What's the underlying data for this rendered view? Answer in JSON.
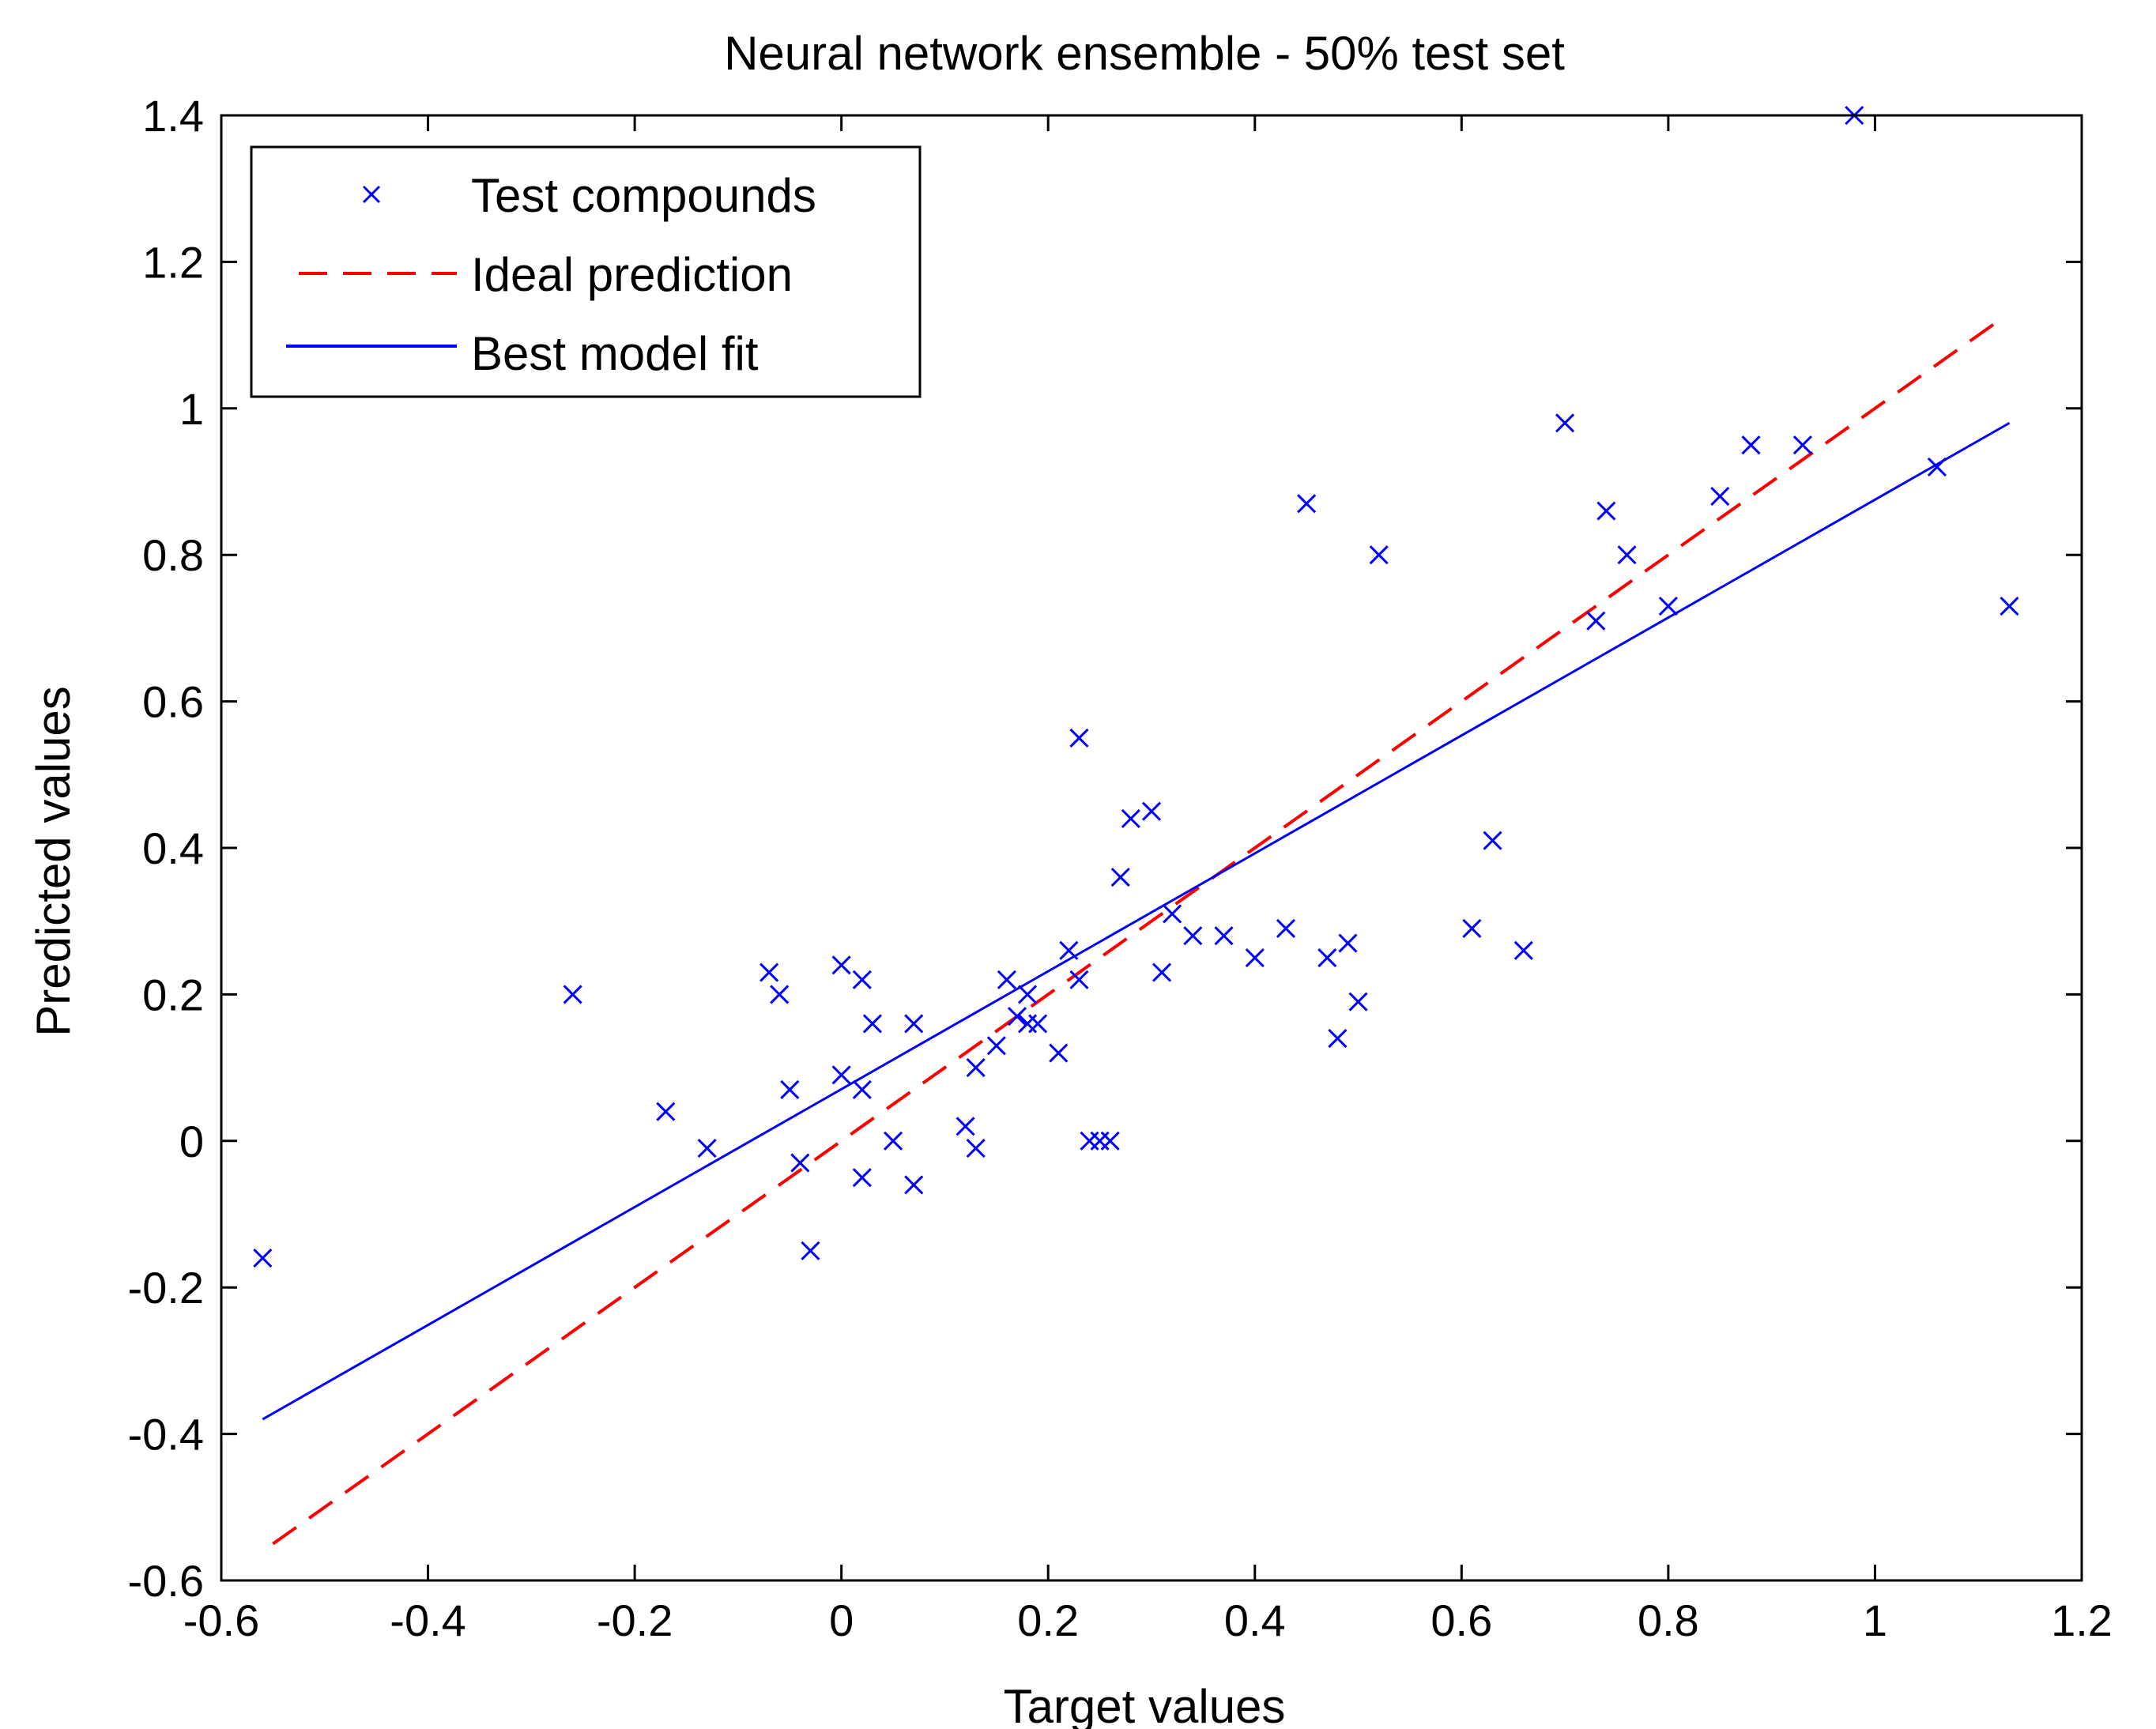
{
  "chart_data": {
    "type": "scatter",
    "title": "Neural network ensemble - 50% test set",
    "xlabel": "Target values",
    "ylabel": "Predicted values",
    "xlim": [
      -0.6,
      1.2
    ],
    "ylim": [
      -0.6,
      1.4
    ],
    "xticks": [
      -0.6,
      -0.4,
      -0.2,
      0,
      0.2,
      0.4,
      0.6,
      0.8,
      1,
      1.2
    ],
    "xtick_labels": [
      "-0.6",
      "-0.4",
      "-0.2",
      "0",
      "0.2",
      "0.4",
      "0.6",
      "0.8",
      "1",
      "1.2"
    ],
    "yticks": [
      -0.6,
      -0.4,
      -0.2,
      0,
      0.2,
      0.4,
      0.6,
      0.8,
      1,
      1.2,
      1.4
    ],
    "ytick_labels": [
      "-0.6",
      "-0.4",
      "-0.2",
      "0",
      "0.2",
      "0.4",
      "0.6",
      "0.8",
      "1",
      "1.2",
      "1.4"
    ],
    "grid": false,
    "legend_position": "top-left",
    "legend": [
      "Test compounds",
      "Ideal prediction",
      "Best model fit"
    ],
    "colors": {
      "points": "#0000ff",
      "ideal": "#ff0000",
      "fit": "#0000ff",
      "axes": "#000000"
    },
    "series": [
      {
        "name": "Test compounds",
        "marker": "x",
        "points": [
          [
            -0.56,
            -0.16
          ],
          [
            -0.26,
            0.2
          ],
          [
            -0.17,
            0.04
          ],
          [
            -0.13,
            -0.01
          ],
          [
            -0.07,
            0.23
          ],
          [
            -0.06,
            0.2
          ],
          [
            -0.05,
            0.07
          ],
          [
            -0.04,
            -0.03
          ],
          [
            -0.03,
            -0.15
          ],
          [
            0.0,
            0.24
          ],
          [
            0.0,
            0.09
          ],
          [
            0.02,
            0.22
          ],
          [
            0.02,
            0.07
          ],
          [
            0.02,
            -0.05
          ],
          [
            0.03,
            0.16
          ],
          [
            0.05,
            0.0
          ],
          [
            0.07,
            0.16
          ],
          [
            0.07,
            -0.06
          ],
          [
            0.12,
            0.02
          ],
          [
            0.13,
            0.1
          ],
          [
            0.13,
            -0.01
          ],
          [
            0.15,
            0.13
          ],
          [
            0.16,
            0.22
          ],
          [
            0.17,
            0.17
          ],
          [
            0.18,
            0.2
          ],
          [
            0.18,
            0.16
          ],
          [
            0.19,
            0.16
          ],
          [
            0.21,
            0.12
          ],
          [
            0.22,
            0.26
          ],
          [
            0.23,
            0.55
          ],
          [
            0.23,
            0.22
          ],
          [
            0.24,
            0.0
          ],
          [
            0.25,
            0.0
          ],
          [
            0.26,
            0.0
          ],
          [
            0.27,
            0.36
          ],
          [
            0.28,
            0.44
          ],
          [
            0.3,
            0.45
          ],
          [
            0.31,
            0.23
          ],
          [
            0.32,
            0.31
          ],
          [
            0.34,
            0.28
          ],
          [
            0.37,
            0.28
          ],
          [
            0.4,
            0.25
          ],
          [
            0.43,
            0.29
          ],
          [
            0.45,
            0.87
          ],
          [
            0.47,
            0.25
          ],
          [
            0.48,
            0.14
          ],
          [
            0.49,
            0.27
          ],
          [
            0.5,
            0.19
          ],
          [
            0.52,
            0.8
          ],
          [
            0.61,
            0.29
          ],
          [
            0.63,
            0.41
          ],
          [
            0.66,
            0.26
          ],
          [
            0.7,
            0.98
          ],
          [
            0.73,
            0.71
          ],
          [
            0.74,
            0.86
          ],
          [
            0.76,
            0.8
          ],
          [
            0.8,
            0.73
          ],
          [
            0.85,
            0.88
          ],
          [
            0.88,
            0.95
          ],
          [
            0.93,
            0.95
          ],
          [
            0.98,
            1.4
          ],
          [
            1.06,
            0.92
          ],
          [
            1.13,
            0.73
          ]
        ]
      },
      {
        "name": "Ideal prediction",
        "style": "dashed",
        "x": [
          -0.55,
          1.12
        ],
        "y": [
          -0.55,
          1.12
        ]
      },
      {
        "name": "Best model fit",
        "style": "solid",
        "x": [
          -0.56,
          1.13
        ],
        "y": [
          -0.38,
          0.98
        ]
      }
    ]
  }
}
